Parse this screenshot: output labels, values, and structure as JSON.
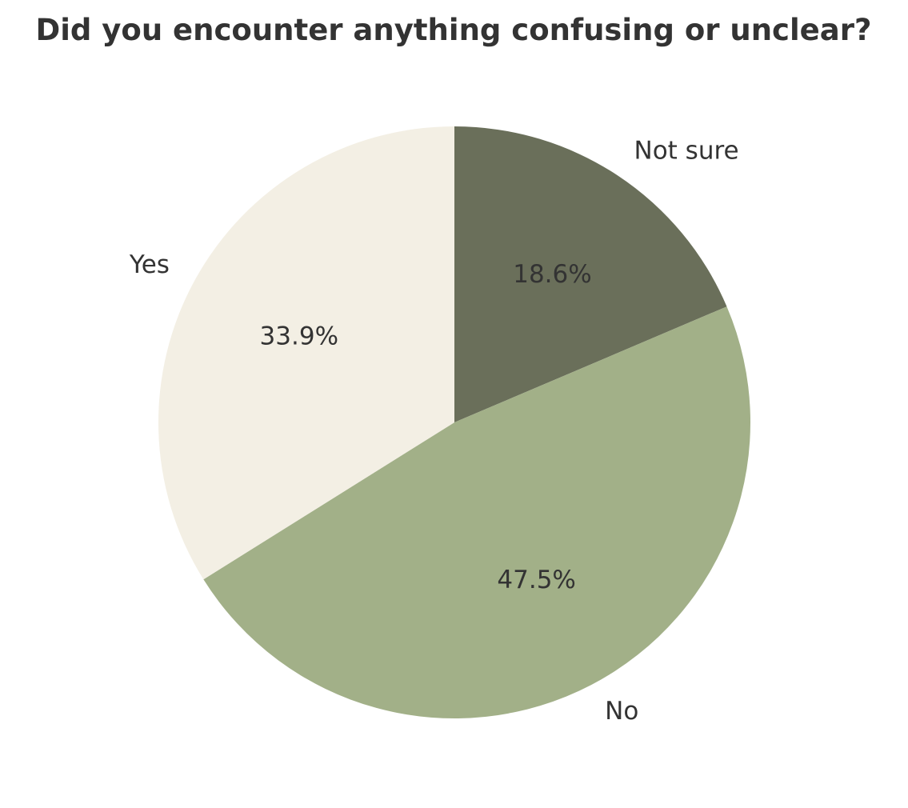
{
  "chart_data": {
    "type": "pie",
    "title": "Did you encounter anything confusing or unclear?",
    "start_angle_deg": 90,
    "direction": "clockwise",
    "slices": [
      {
        "label": "Not sure",
        "value": 18.6,
        "pct_label": "18.6%",
        "color": "#6a6f5a"
      },
      {
        "label": "No",
        "value": 47.5,
        "pct_label": "47.5%",
        "color": "#a2b088"
      },
      {
        "label": "Yes",
        "value": 33.9,
        "pct_label": "33.9%",
        "color": "#f3efe4"
      }
    ]
  }
}
